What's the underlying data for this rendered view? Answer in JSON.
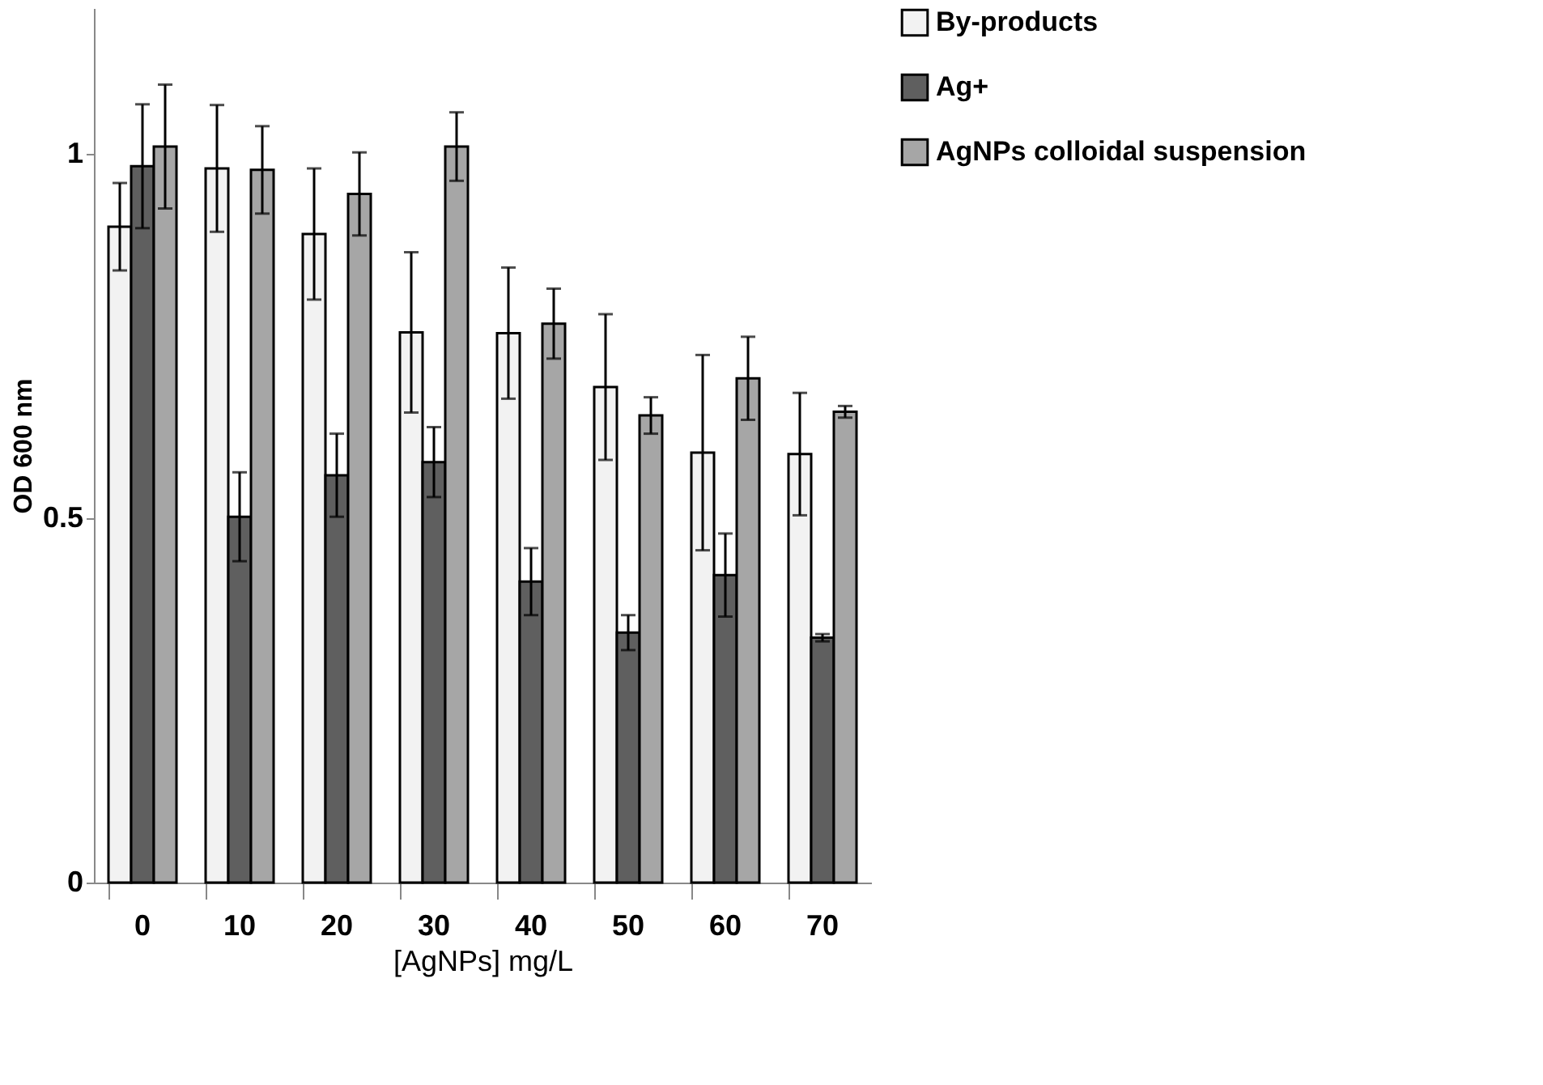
{
  "chart_data": {
    "type": "bar",
    "xlabel": "[AgNPs] mg/L",
    "ylabel": "OD 600 nm",
    "categories": [
      "0",
      "10",
      "20",
      "30",
      "40",
      "50",
      "60",
      "70"
    ],
    "series": [
      {
        "name": "By-products",
        "color": "#f2f2f2",
        "values": [
          0.9,
          0.98,
          0.89,
          0.755,
          0.754,
          0.68,
          0.59,
          0.588
        ],
        "errors": [
          0.06,
          0.087,
          0.09,
          0.11,
          0.09,
          0.1,
          0.134,
          0.084
        ]
      },
      {
        "name": "Ag+",
        "color": "#5f5f5f",
        "values": [
          0.983,
          0.502,
          0.559,
          0.577,
          0.413,
          0.343,
          0.422,
          0.336
        ],
        "errors": [
          0.085,
          0.061,
          0.057,
          0.048,
          0.046,
          0.024,
          0.057,
          0.005
        ]
      },
      {
        "name": "AgNPs colloidal suspension",
        "color": "#a6a6a6",
        "values": [
          1.01,
          0.978,
          0.945,
          1.01,
          0.767,
          0.641,
          0.692,
          0.646
        ],
        "errors": [
          0.085,
          0.06,
          0.057,
          0.047,
          0.048,
          0.025,
          0.057,
          0.008
        ]
      }
    ],
    "ylim": [
      0,
      1.2
    ],
    "yticks": [
      0,
      0.5,
      1
    ],
    "grid": false,
    "legend": "right"
  }
}
